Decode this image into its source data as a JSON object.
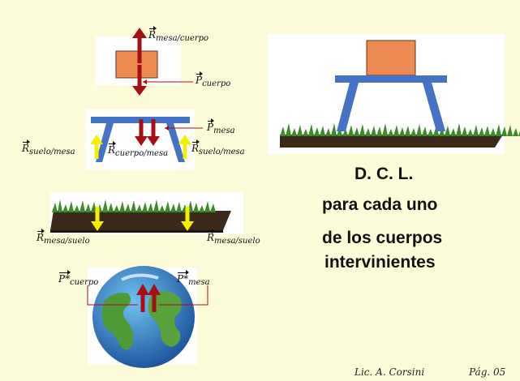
{
  "labels": {
    "r_mesa_cuerpo": {
      "sym": "R",
      "sub": "mesa/cuerpo"
    },
    "p_cuerpo": {
      "sym": "P",
      "sub": "cuerpo"
    },
    "p_mesa": {
      "sym": "P",
      "sub": "mesa"
    },
    "r_suelo_mesa_left": {
      "sym": "R",
      "sub": "suelo/mesa"
    },
    "r_cuerpo_mesa": {
      "sym": "R",
      "sub": "cuerpo/mesa"
    },
    "r_suelo_mesa_right": {
      "sym": "R",
      "sub": "suelo/mesa"
    },
    "r_mesa_suelo_left": {
      "sym": "R",
      "sub": "mesa/suelo"
    },
    "r_mesa_suelo_right": {
      "sym": "R",
      "sub": "mesa/suelo"
    },
    "p_star_cuerpo": {
      "sym": "P*",
      "sub": "cuerpo"
    },
    "p_star_mesa": {
      "sym": "P*",
      "sub": "mesa"
    }
  },
  "title_lines": [
    "D. C. L.",
    "para cada uno",
    "de los cuerpos",
    "intervinientes"
  ],
  "footer": {
    "author": "Lic. A. Corsini",
    "page": "Pág. 05"
  },
  "colors": {
    "box": "#ec8a52",
    "table": "#4472c4",
    "arrow_red": "#a50f15",
    "arrow_yellow": "#f5f000",
    "background": "#fdfcd8"
  }
}
